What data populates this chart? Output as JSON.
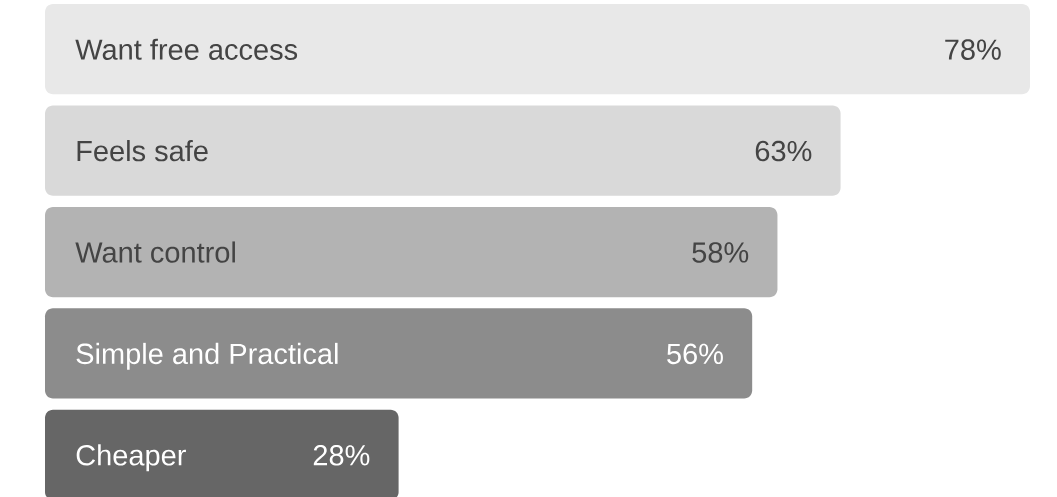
{
  "chart_data": {
    "type": "bar",
    "orientation": "horizontal",
    "xlim": [
      0,
      78
    ],
    "categories": [
      "Want free access",
      "Feels safe",
      "Want control",
      "Simple and Practical",
      "Cheaper"
    ],
    "values": [
      78,
      63,
      58,
      56,
      28
    ],
    "value_labels": [
      "78%",
      "63%",
      "58%",
      "56%",
      "28%"
    ],
    "colors": [
      "#e8e8e8",
      "#d9d9d9",
      "#b3b3b3",
      "#8c8c8c",
      "#666666"
    ]
  }
}
